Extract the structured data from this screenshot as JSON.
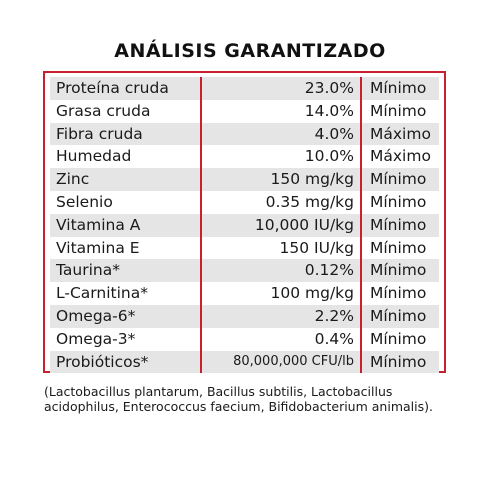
{
  "title": "ANÁLISIS GARANTIZADO",
  "rows": [
    {
      "nutrient": "Proteína cruda",
      "amount": "23.0%",
      "qualifier": "Mínimo"
    },
    {
      "nutrient": "Grasa cruda",
      "amount": "14.0%",
      "qualifier": "Mínimo"
    },
    {
      "nutrient": "Fibra cruda",
      "amount": "4.0%",
      "qualifier": "Máximo"
    },
    {
      "nutrient": "Humedad",
      "amount": "10.0%",
      "qualifier": "Máximo"
    },
    {
      "nutrient": "Zinc",
      "amount": "150 mg/kg",
      "qualifier": "Mínimo"
    },
    {
      "nutrient": "Selenio",
      "amount": "0.35 mg/kg",
      "qualifier": "Mínimo"
    },
    {
      "nutrient": "Vitamina A",
      "amount": "10,000 IU/kg",
      "qualifier": "Mínimo"
    },
    {
      "nutrient": "Vitamina E",
      "amount": "150 IU/kg",
      "qualifier": "Mínimo"
    },
    {
      "nutrient": "Taurina*",
      "amount": "0.12%",
      "qualifier": "Mínimo"
    },
    {
      "nutrient": "L-Carnitina*",
      "amount": "100 mg/kg",
      "qualifier": "Mínimo"
    },
    {
      "nutrient": "Omega-6*",
      "amount": "2.2%",
      "qualifier": "Mínimo"
    },
    {
      "nutrient": "Omega-3*",
      "amount": "0.4%",
      "qualifier": "Mínimo"
    },
    {
      "nutrient": "Probióticos*",
      "amount": "80,000,000 CFU/lb",
      "qualifier": "Mínimo"
    }
  ],
  "note": "(Lactobacillus plantarum, Bacillus subtilis, Lactobacillus acidophilus, Enterococcus faecium, Bifidobacterium animalis).",
  "colors": {
    "border": "#c8202f",
    "shade": "#e5e5e5"
  }
}
